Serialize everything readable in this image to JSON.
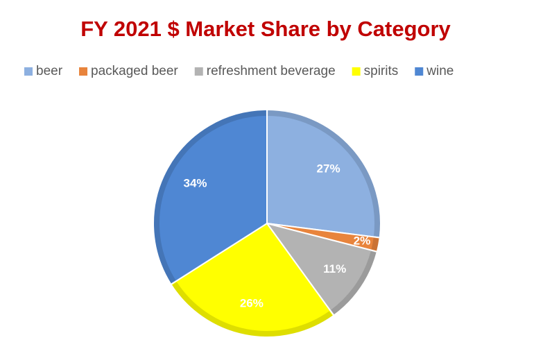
{
  "chart_data": {
    "type": "pie",
    "title": "FY 2021 $ Market Share by Category",
    "categories": [
      "beer",
      "packaged beer",
      "refreshment beverage",
      "spirits",
      "wine"
    ],
    "values": [
      27,
      2,
      11,
      26,
      34
    ],
    "value_labels": [
      "27%",
      "2%",
      "11%",
      "26%",
      "34%"
    ],
    "colors": [
      "#8db0e0",
      "#e8843c",
      "#b3b3b3",
      "#ffff00",
      "#4f87d3"
    ],
    "legend": "top"
  }
}
